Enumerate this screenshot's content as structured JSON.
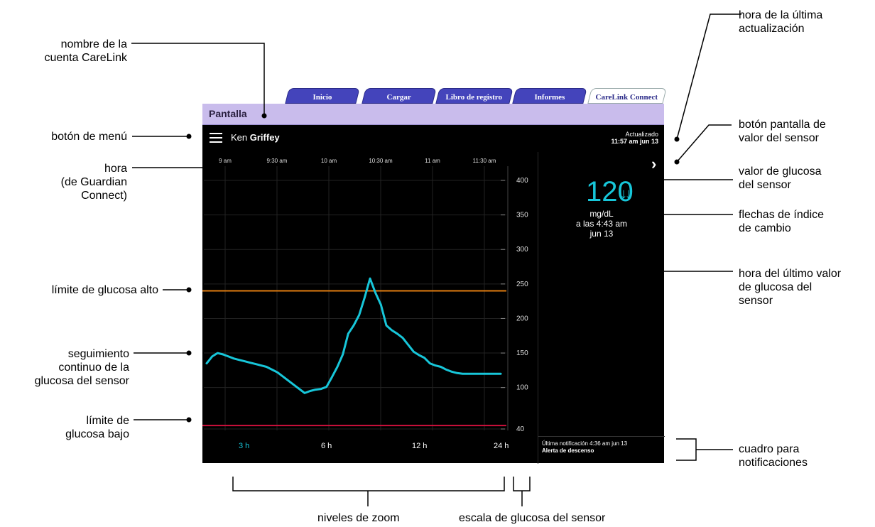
{
  "tabs": [
    {
      "label": "Inicio",
      "active": false
    },
    {
      "label": "Cargar",
      "active": false
    },
    {
      "label": "Libro de registro",
      "active": false
    },
    {
      "label": "Informes",
      "active": false
    },
    {
      "label": "CareLink Connect",
      "active": true
    }
  ],
  "page_bar": {
    "title": "Pantalla"
  },
  "header": {
    "account_first": "Ken",
    "account_last": "Griffey",
    "updated_label": "Actualizado",
    "updated_time": "11:57 am jun 13"
  },
  "chart_data": {
    "type": "line",
    "x_tick_labels": [
      "9 am",
      "9:30 am",
      "10 am",
      "10:30 am",
      "11 am",
      "11:30 am"
    ],
    "y_tick_labels": [
      "400",
      "350",
      "300",
      "250",
      "200",
      "150",
      "100",
      "40"
    ],
    "y_ticks": [
      400,
      350,
      300,
      250,
      200,
      150,
      100,
      40
    ],
    "high_limit": 240,
    "low_limit": 45,
    "series": [
      {
        "color": "#17c6d9",
        "x": [
          0.0,
          0.05,
          0.1,
          0.15,
          0.2,
          0.25,
          0.3,
          0.35,
          0.4,
          0.45,
          0.5,
          0.55,
          0.6,
          0.65,
          0.7,
          0.75,
          0.8,
          0.85,
          0.9,
          0.95,
          1.0,
          1.05,
          1.1,
          1.15,
          1.2,
          1.25,
          1.3,
          1.35,
          1.4,
          1.45,
          1.5,
          1.55,
          1.6,
          1.65,
          1.7,
          1.75,
          1.8,
          1.85,
          1.9,
          1.95,
          2.0,
          2.05,
          2.1,
          2.15,
          2.2,
          2.25,
          2.3,
          2.35,
          2.4,
          2.45,
          2.5,
          2.55,
          2.6,
          2.65,
          2.7
        ],
        "y": [
          135,
          145,
          150,
          148,
          145,
          142,
          140,
          138,
          136,
          134,
          132,
          130,
          126,
          122,
          116,
          110,
          104,
          98,
          92,
          95,
          97,
          98,
          101,
          115,
          130,
          148,
          178,
          190,
          205,
          230,
          258,
          237,
          220,
          190,
          183,
          178,
          172,
          162,
          152,
          147,
          143,
          135,
          132,
          130,
          126,
          123,
          121,
          120,
          120,
          120,
          120,
          120,
          120,
          120,
          120
        ]
      }
    ],
    "colors": {
      "trace": "#17c6d9",
      "high": "#e07d10",
      "low": "#d0103c",
      "grid": "#222222"
    }
  },
  "sensor": {
    "value": "120",
    "trend_arrows": "↓↓",
    "unit": "mg/dL",
    "time_line1": "a las 4:43 am",
    "time_line2": "jun 13"
  },
  "zoom_levels": [
    {
      "label": "3 h",
      "selected": true
    },
    {
      "label": "6 h",
      "selected": false
    },
    {
      "label": "12 h",
      "selected": false
    },
    {
      "label": "24 h",
      "selected": false
    }
  ],
  "notification": {
    "line1": "Última notificación 4:36 am jun 13",
    "line2": "Alerta de descenso"
  },
  "callouts": {
    "account_name": "nombre de la\ncuenta CareLink",
    "menu_button": "botón de menú",
    "time": "hora\n(de Guardian\nConnect)",
    "high_limit": "límite de glucosa alto",
    "continuous_trace": "seguimiento\ncontinuo de la\nglucosa del sensor",
    "low_limit": "límite de\nglucosa bajo",
    "last_update_time": "hora de la última\nactualización",
    "sensor_value_button": "botón pantalla de\nvalor del sensor",
    "sensor_glucose_value": "valor de glucosa\ndel sensor",
    "trend_arrows": "flechas de índice\nde cambio",
    "last_sg_time": "hora del último valor\nde glucosa del\nsensor",
    "notification_box": "cuadro para\nnotificaciones",
    "zoom_levels": "niveles de zoom",
    "sg_scale": "escala de glucosa del sensor"
  }
}
